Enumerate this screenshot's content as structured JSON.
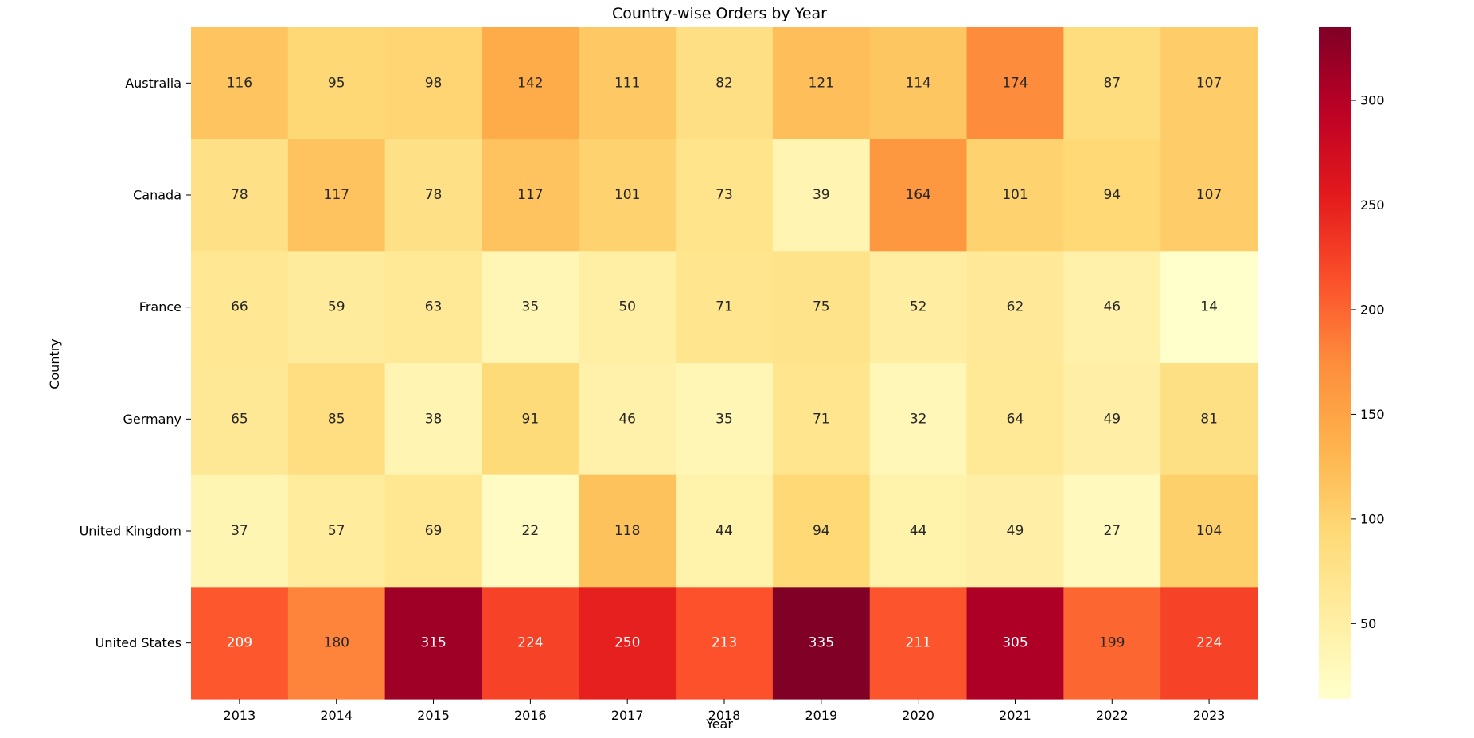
{
  "chart_data": {
    "type": "heatmap",
    "title": "Country-wise Orders by Year",
    "xlabel": "Year",
    "ylabel": "Country",
    "x": [
      "2013",
      "2014",
      "2015",
      "2016",
      "2017",
      "2018",
      "2019",
      "2020",
      "2021",
      "2022",
      "2023"
    ],
    "y": [
      "Australia",
      "Canada",
      "France",
      "Germany",
      "United Kingdom",
      "United States"
    ],
    "values": [
      [
        116,
        95,
        98,
        142,
        111,
        82,
        121,
        114,
        174,
        87,
        107
      ],
      [
        78,
        117,
        78,
        117,
        101,
        73,
        39,
        164,
        101,
        94,
        107
      ],
      [
        66,
        59,
        63,
        35,
        50,
        71,
        75,
        52,
        62,
        46,
        14
      ],
      [
        65,
        85,
        38,
        91,
        46,
        35,
        71,
        32,
        64,
        49,
        81
      ],
      [
        37,
        57,
        69,
        22,
        118,
        44,
        94,
        44,
        49,
        27,
        104
      ],
      [
        209,
        180,
        315,
        224,
        250,
        213,
        335,
        211,
        305,
        199,
        224
      ]
    ],
    "colormap": "YlOrRd",
    "colorbar": {
      "range": [
        14,
        335
      ],
      "ticks": [
        50,
        100,
        150,
        200,
        250,
        300
      ]
    },
    "annotations": true,
    "grid": false
  }
}
